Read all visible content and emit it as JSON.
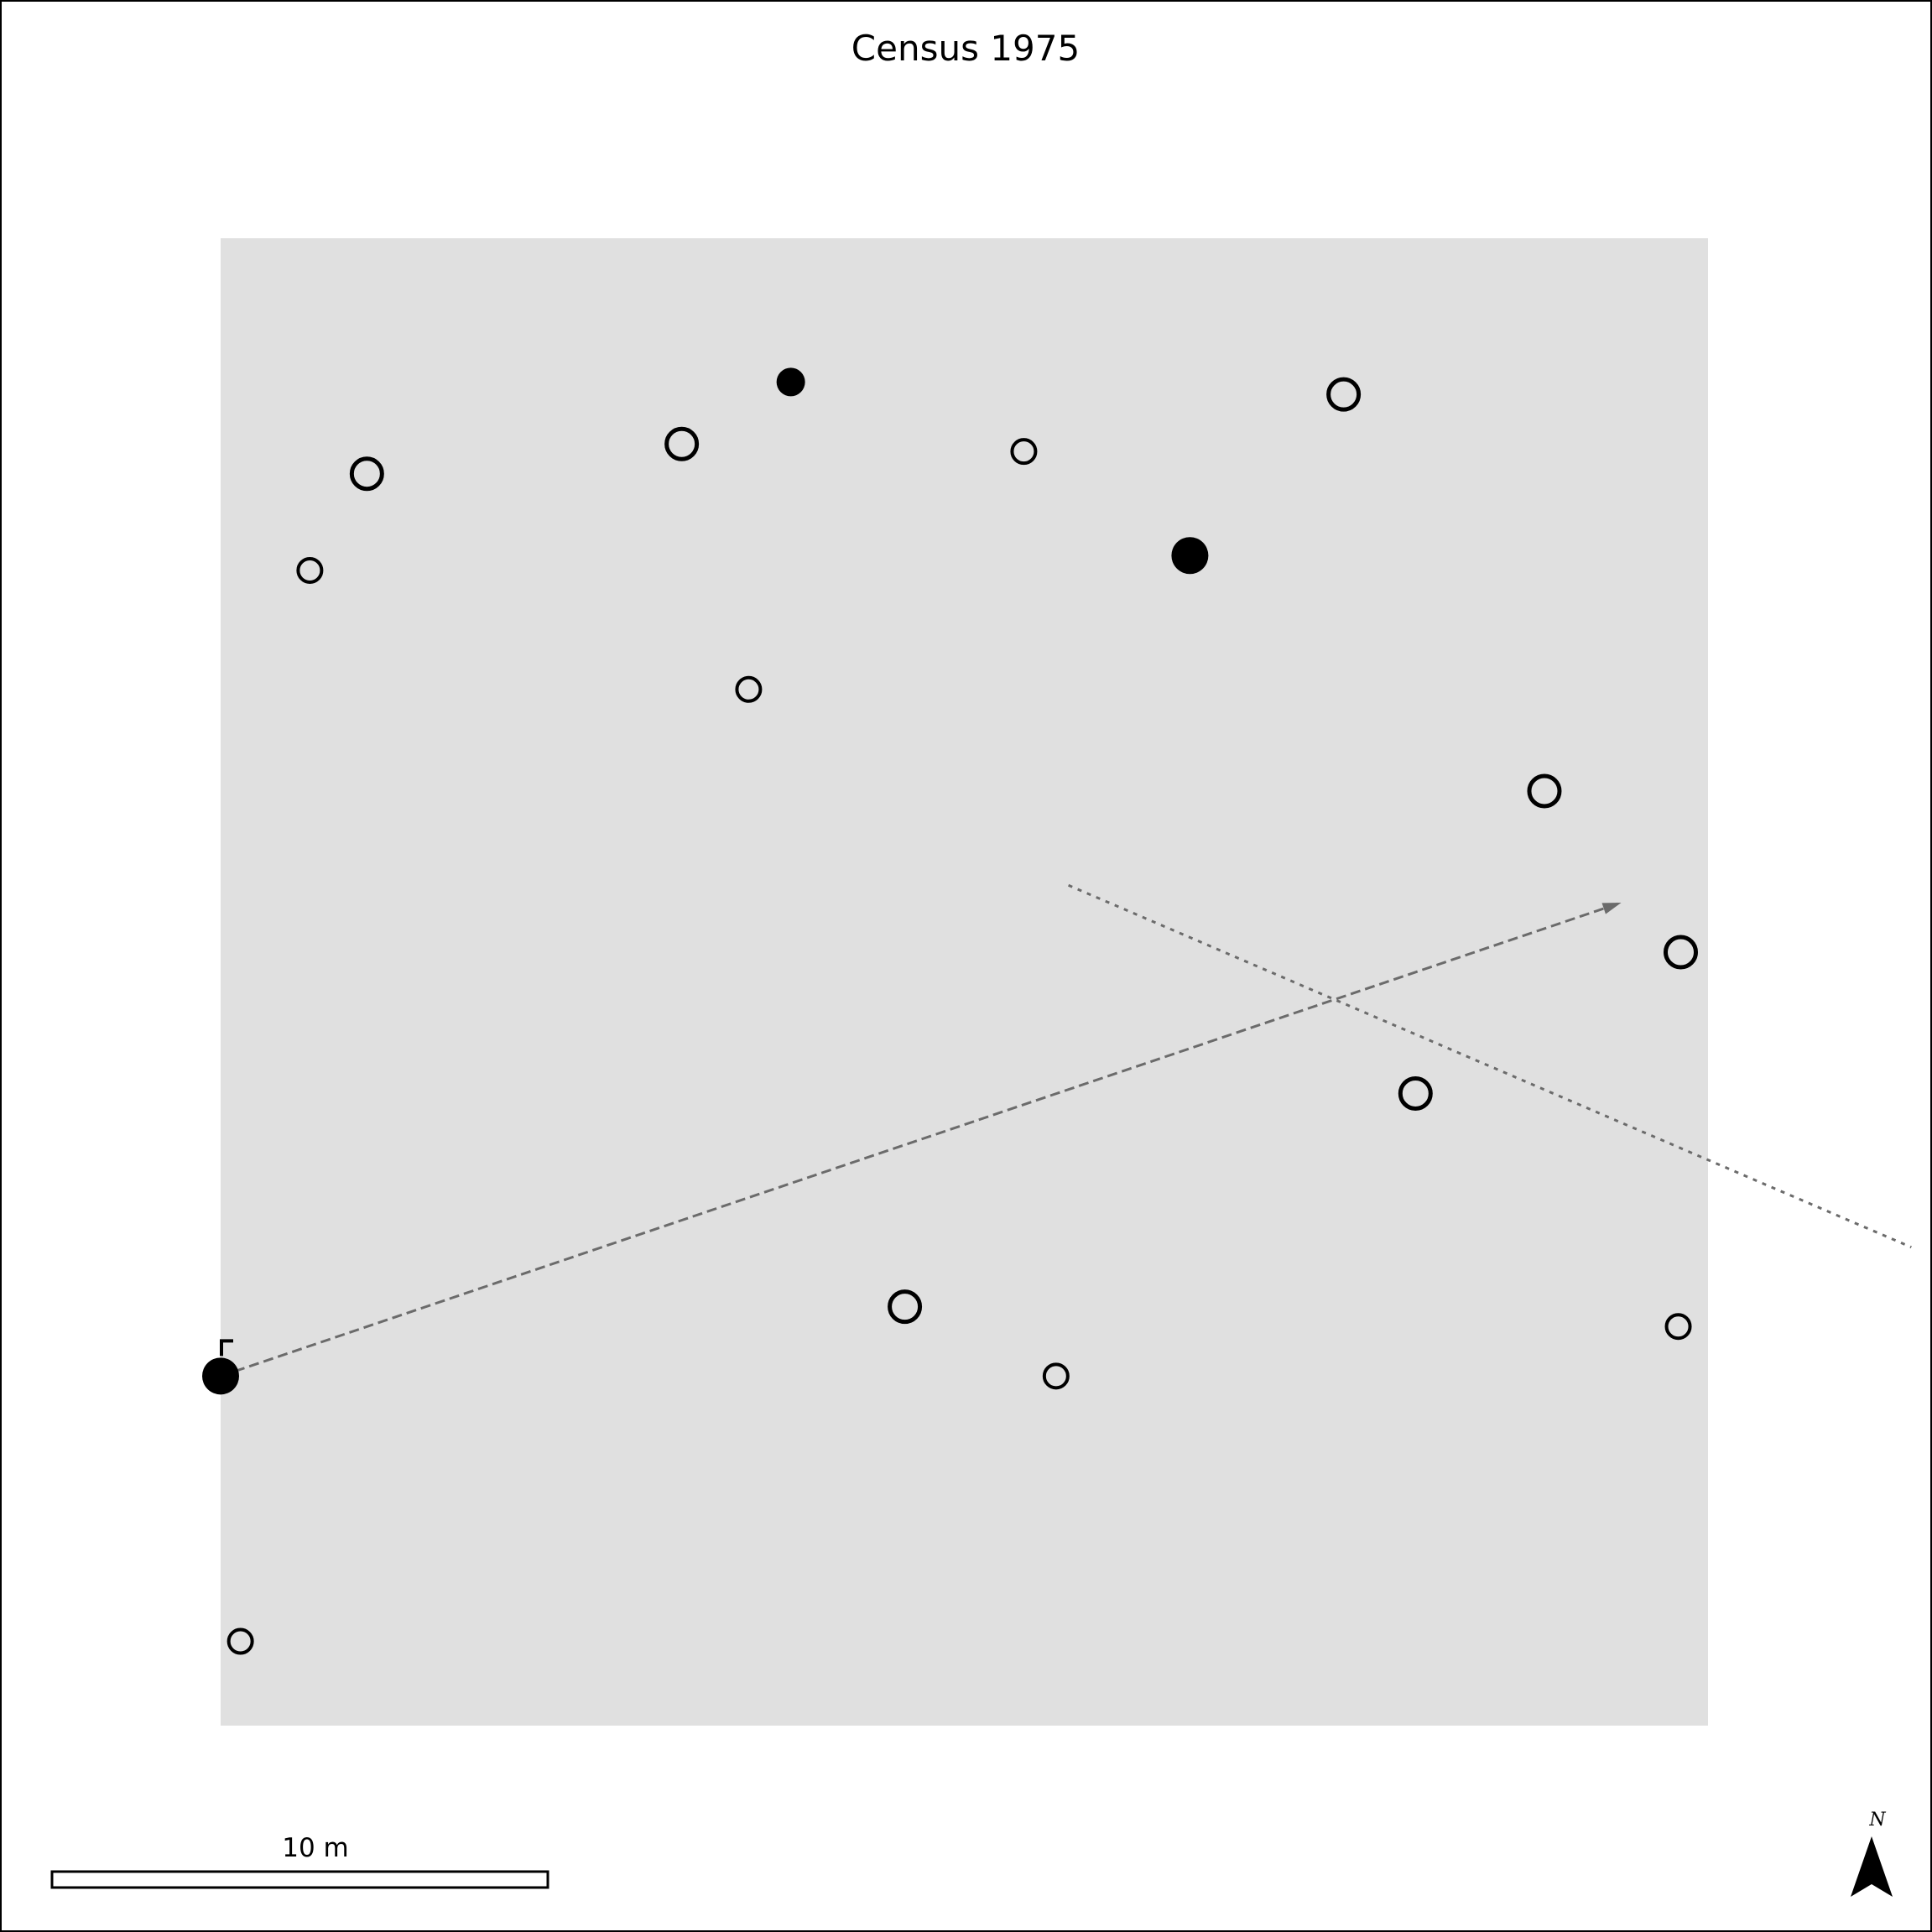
{
  "map": {
    "title": "Census 1975",
    "plot_color": "#e0e0e0",
    "frame_color": "#000000",
    "path_color": "#6b6b6b",
    "scale_bar": {
      "label": "10 m",
      "length_m": 10
    },
    "north_arrow": {
      "label": "N"
    }
  },
  "chart_data": {
    "type": "map",
    "title": "Census 1975",
    "extent_m": {
      "x": [
        0,
        30
      ],
      "y": [
        0,
        30
      ]
    },
    "points": [
      {
        "id": 1,
        "x": 1.8,
        "y": 23.3,
        "style": "open",
        "size": "small"
      },
      {
        "id": 2,
        "x": 2.95,
        "y": 25.25,
        "style": "open",
        "size": "large"
      },
      {
        "id": 3,
        "x": 9.3,
        "y": 25.85,
        "style": "open",
        "size": "large"
      },
      {
        "id": 4,
        "x": 11.5,
        "y": 27.1,
        "style": "filled",
        "size": "small"
      },
      {
        "id": 5,
        "x": 10.65,
        "y": 20.9,
        "style": "open",
        "size": "small"
      },
      {
        "id": 6,
        "x": 16.2,
        "y": 25.7,
        "style": "open",
        "size": "small"
      },
      {
        "id": 7,
        "x": 22.65,
        "y": 26.85,
        "style": "open",
        "size": "large"
      },
      {
        "id": 8,
        "x": 19.55,
        "y": 23.6,
        "style": "filled",
        "size": "large"
      },
      {
        "id": 9,
        "x": 26.7,
        "y": 18.85,
        "style": "open",
        "size": "large"
      },
      {
        "id": 10,
        "x": 29.45,
        "y": 15.6,
        "style": "open",
        "size": "large"
      },
      {
        "id": 11,
        "x": 24.1,
        "y": 12.75,
        "style": "open",
        "size": "large"
      },
      {
        "id": 12,
        "x": 13.8,
        "y": 8.45,
        "style": "open",
        "size": "large"
      },
      {
        "id": 13,
        "x": 16.85,
        "y": 7.05,
        "style": "open",
        "size": "small"
      },
      {
        "id": 14,
        "x": 29.4,
        "y": 8.05,
        "style": "open",
        "size": "small"
      },
      {
        "id": 15,
        "x": 0.4,
        "y": 1.7,
        "style": "open",
        "size": "small"
      },
      {
        "id": 16,
        "x": 0.0,
        "y": 7.05,
        "style": "filled",
        "size": "large",
        "flag": true
      }
    ],
    "paths": [
      {
        "id": "dashed-path",
        "style": "dashed",
        "arrow": true,
        "from": {
          "x": 0.0,
          "y": 7.05
        },
        "to": {
          "x": 28.25,
          "y": 16.6
        }
      },
      {
        "id": "dotted-path",
        "style": "dotted",
        "arrow": false,
        "from": {
          "x": 17.1,
          "y": 16.95
        },
        "to": {
          "x": 34.1,
          "y": 9.65
        }
      }
    ]
  }
}
